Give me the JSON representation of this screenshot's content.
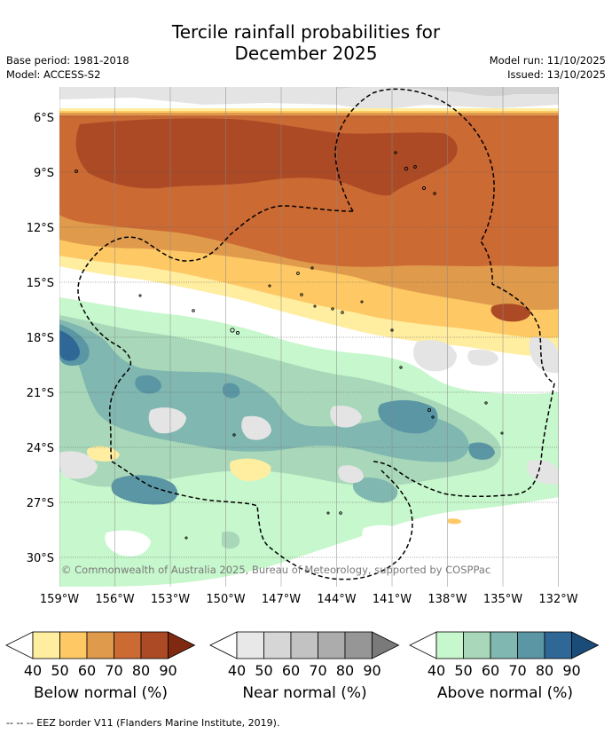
{
  "title_line1": "Tercile rainfall probabilities for",
  "title_line2": "December 2025",
  "meta": {
    "base_period": "Base period: 1981-2018",
    "model": "Model: ACCESS-S2",
    "model_run": "Model run: 11/10/2025",
    "issued": "Issued: 13/10/2025"
  },
  "map": {
    "lat_labels": [
      "6°S",
      "9°S",
      "12°S",
      "15°S",
      "18°S",
      "21°S",
      "24°S",
      "27°S",
      "30°S"
    ],
    "lon_labels": [
      "159°W",
      "156°W",
      "153°W",
      "150°W",
      "147°W",
      "144°W",
      "141°W",
      "138°W",
      "135°W",
      "132°W"
    ],
    "copyright": "© Commonwealth of Australia 2025, Bureau of Meteorology, supported by COSPPac"
  },
  "legends": [
    {
      "name": "below",
      "label": "Below normal (%)",
      "ticks": [
        "40",
        "50",
        "60",
        "70",
        "80",
        "90"
      ],
      "colors": [
        "#ffeda0",
        "#fec965",
        "#e09a4c",
        "#cc6a34",
        "#ab4a25",
        "#7f2a10"
      ]
    },
    {
      "name": "near",
      "label": "Near normal (%)",
      "ticks": [
        "40",
        "50",
        "60",
        "70",
        "80",
        "90"
      ],
      "colors": [
        "#e8e8e8",
        "#d6d6d6",
        "#c2c2c2",
        "#acacac",
        "#969696",
        "#7a7a7a"
      ]
    },
    {
      "name": "above",
      "label": "Above normal (%)",
      "ticks": [
        "40",
        "50",
        "60",
        "70",
        "80",
        "90"
      ],
      "colors": [
        "#c7f7cc",
        "#a8d8b9",
        "#80b7b0",
        "#5a96a4",
        "#2f6797",
        "#1a4c7a"
      ]
    }
  ],
  "footnote": "--  --  -- EEZ border V11 (Flanders Marine Institute, 2019)."
}
